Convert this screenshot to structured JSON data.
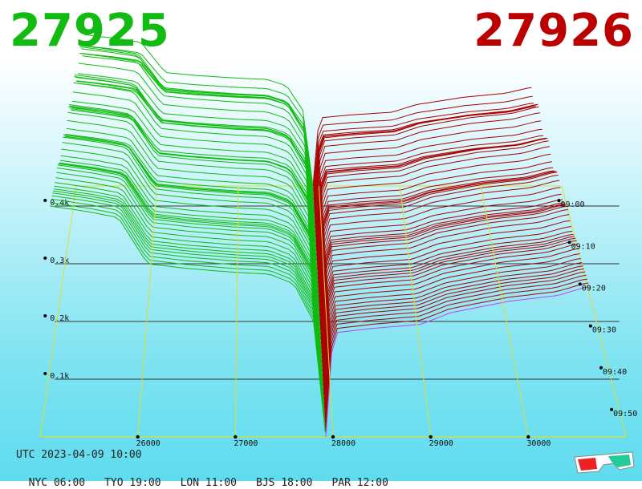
{
  "header": {
    "bid_price": "27925",
    "ask_price": "27926",
    "bid_color": "#11bb11",
    "ask_color": "#bb0000"
  },
  "chart_data": {
    "type": "area",
    "mode": "3d-depth-waterfall",
    "x_ticks": [
      26000,
      27000,
      28000,
      29000,
      30000
    ],
    "x_tick_labels": [
      "26000",
      "27000",
      "28000",
      "29000",
      "30000"
    ],
    "volume_ticks": [
      100,
      200,
      300,
      400
    ],
    "volume_tick_labels": [
      "0.1k",
      "0.2k",
      "0.3k",
      "0.4k"
    ],
    "time_ticks": [
      "09:00",
      "09:10",
      "09:20",
      "09:30",
      "09:40",
      "09:50"
    ],
    "mid_price": 27925,
    "bid_depth_profile": [
      {
        "price": 25100,
        "volume": 400
      },
      {
        "price": 25500,
        "volume": 390
      },
      {
        "price": 25800,
        "volume": 380
      },
      {
        "price": 26100,
        "volume": 300
      },
      {
        "price": 26500,
        "volume": 292
      },
      {
        "price": 27000,
        "volume": 285
      },
      {
        "price": 27350,
        "volume": 282
      },
      {
        "price": 27600,
        "volume": 265
      },
      {
        "price": 27800,
        "volume": 200
      },
      {
        "price": 27925,
        "volume": 0
      }
    ],
    "ask_depth_profile": [
      {
        "price": 27926,
        "volume": 0
      },
      {
        "price": 28000,
        "volume": 180
      },
      {
        "price": 28400,
        "volume": 188
      },
      {
        "price": 28900,
        "volume": 195
      },
      {
        "price": 29200,
        "volume": 215
      },
      {
        "price": 29800,
        "volume": 235
      },
      {
        "price": 30300,
        "volume": 245
      },
      {
        "price": 30600,
        "volume": 260
      }
    ],
    "colors": {
      "bid": "#11bb11",
      "ask": "#aa0000",
      "grid": "#dddd33",
      "latest_ask": "#bb44ee"
    }
  },
  "footer": {
    "utc": "UTC 2023-04-09 10:00",
    "zones": [
      "NYC 06:00",
      "TYO 19:00",
      "LON 11:00",
      "BJS 18:00",
      "PAR 12:00"
    ]
  },
  "icons": {
    "glasses": "3d-glasses-icon"
  }
}
